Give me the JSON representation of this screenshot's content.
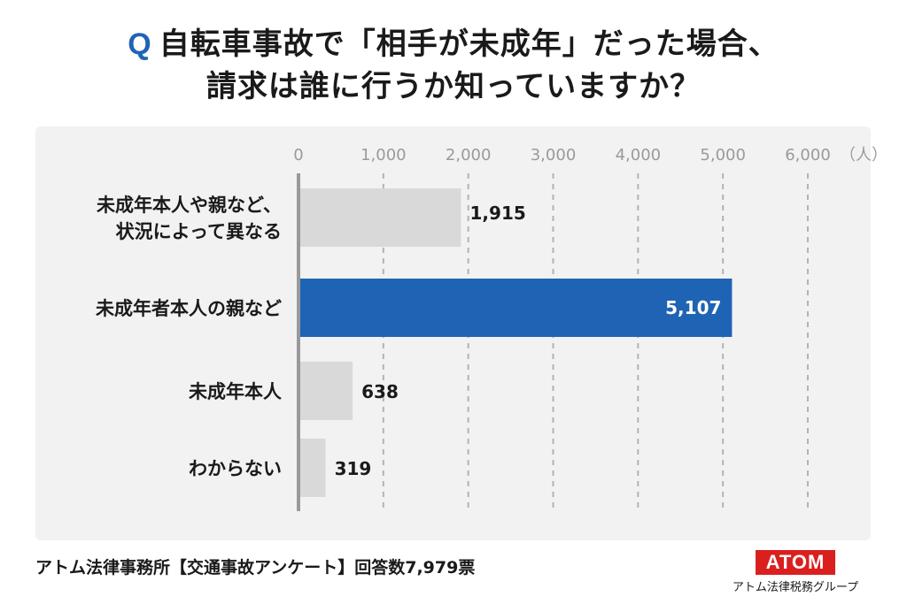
{
  "title": {
    "q_mark": "Q",
    "line1": "自転車事故で「相手が未成年」だった場合、",
    "line2": "請求は誰に行うか知っていますか？"
  },
  "chart_data": {
    "type": "bar",
    "orientation": "horizontal",
    "categories": [
      "未成年本人や親など、\n状況によって異なる",
      "未成年者本人の親など",
      "未成年本人",
      "わからない"
    ],
    "values": [
      1915,
      5107,
      638,
      319
    ],
    "value_labels": [
      "1,915",
      "5,107",
      "638",
      "319"
    ],
    "highlight_index": 1,
    "xlim": [
      0,
      6000
    ],
    "ticks": [
      0,
      1000,
      2000,
      3000,
      4000,
      5000,
      6000
    ],
    "tick_labels": [
      "0",
      "1,000",
      "2,000",
      "3,000",
      "4,000",
      "5,000",
      "6,000"
    ],
    "unit_label": "（人）",
    "grid": "vertical dashed",
    "colors": {
      "highlight": "#1f64b4",
      "default": "#d9d9d9",
      "axis": "#999999",
      "grid": "#b3b3b3",
      "tick_text": "#9a9a9a"
    }
  },
  "footer": {
    "source": "アトム法律事務所【交通事故アンケート】回答数7,979票"
  },
  "brand": {
    "logo": "ATOM",
    "subtitle": "アトム法律税務グループ"
  }
}
